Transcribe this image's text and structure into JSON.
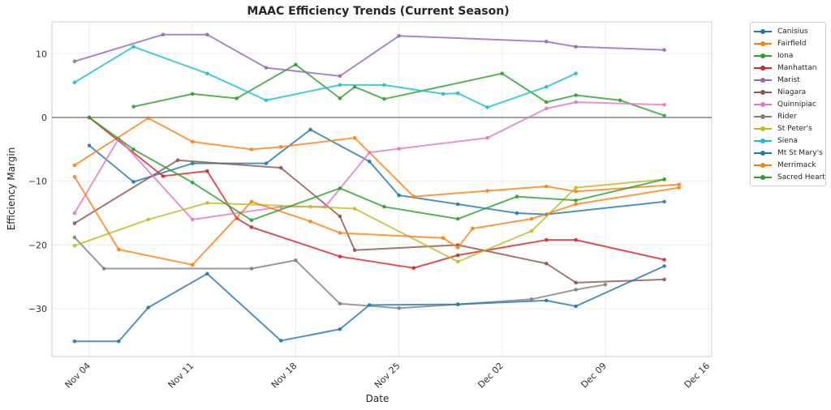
{
  "chart_data": {
    "type": "line",
    "title": "MAAC Efficiency Trends (Current Season)",
    "xlabel": "Date",
    "ylabel": "Efficiency Margin",
    "x_ticks": [
      "Nov 04",
      "Nov 11",
      "Nov 18",
      "Nov 25",
      "Dec 02",
      "Dec 09",
      "Dec 16"
    ],
    "y_ticks": [
      10,
      0,
      -10,
      -20,
      -30
    ],
    "xlim": [
      "Nov 03",
      "Dec 16"
    ],
    "ylim": [
      -37.5,
      15.5
    ],
    "grid": true,
    "zero_line": true,
    "legend_position": "outside-top-right",
    "series": [
      {
        "name": "Canisius",
        "color": "#1f77b4",
        "points": [
          [
            "Nov 04",
            -4.4
          ],
          [
            "Nov 07",
            -10.1
          ],
          [
            "Nov 11",
            -7.2
          ],
          [
            "Nov 16",
            -7.2
          ],
          [
            "Nov 19",
            -1.9
          ],
          [
            "Nov 23",
            -6.9
          ],
          [
            "Nov 25",
            -12.2
          ],
          [
            "Nov 29",
            -13.6
          ],
          [
            "Dec 03",
            -15.0
          ],
          [
            "Dec 05",
            -15.2
          ],
          [
            "Dec 13",
            -13.2
          ]
        ]
      },
      {
        "name": "Fairfield",
        "color": "#ff7f0e",
        "points": [
          [
            "Nov 03",
            -7.5
          ],
          [
            "Nov 08",
            -0.1
          ],
          [
            "Nov 11",
            -3.8
          ],
          [
            "Nov 15",
            -5.0
          ],
          [
            "Nov 17",
            -4.6
          ],
          [
            "Nov 22",
            -3.2
          ],
          [
            "Nov 26",
            -12.4
          ],
          [
            "Dec 01",
            -11.5
          ],
          [
            "Dec 05",
            -10.8
          ],
          [
            "Dec 07",
            -11.6
          ],
          [
            "Dec 14",
            -10.5
          ]
        ]
      },
      {
        "name": "Iona",
        "color": "#2ca02c",
        "points": [
          [
            "Nov 07",
            1.7
          ],
          [
            "Nov 11",
            3.7
          ],
          [
            "Nov 14",
            3.0
          ],
          [
            "Nov 18",
            8.3
          ],
          [
            "Nov 21",
            3.0
          ],
          [
            "Nov 22",
            4.8
          ],
          [
            "Nov 24",
            2.9
          ],
          [
            "Dec 02",
            6.9
          ],
          [
            "Dec 05",
            2.4
          ],
          [
            "Dec 07",
            3.5
          ],
          [
            "Dec 10",
            2.7
          ],
          [
            "Dec 13",
            0.3
          ]
        ]
      },
      {
        "name": "Manhattan",
        "color": "#d62728",
        "points": [
          [
            "Nov 04",
            0.0
          ],
          [
            "Nov 09",
            -9.2
          ],
          [
            "Nov 12",
            -8.4
          ],
          [
            "Nov 14",
            -15.8
          ],
          [
            "Nov 15",
            -17.2
          ],
          [
            "Nov 21",
            -21.8
          ],
          [
            "Nov 26",
            -23.6
          ],
          [
            "Nov 29",
            -21.6
          ],
          [
            "Dec 05",
            -19.2
          ],
          [
            "Dec 07",
            -19.2
          ],
          [
            "Dec 13",
            -22.3
          ]
        ]
      },
      {
        "name": "Marist",
        "color": "#9467bd",
        "points": [
          [
            "Nov 03",
            8.8
          ],
          [
            "Nov 09",
            13.0
          ],
          [
            "Nov 12",
            13.0
          ],
          [
            "Nov 16",
            7.8
          ],
          [
            "Nov 21",
            6.5
          ],
          [
            "Nov 25",
            12.8
          ],
          [
            "Dec 05",
            11.9
          ],
          [
            "Dec 07",
            11.1
          ],
          [
            "Dec 13",
            10.6
          ]
        ]
      },
      {
        "name": "Niagara",
        "color": "#8c564b",
        "points": [
          [
            "Nov 03",
            -16.6
          ],
          [
            "Nov 10",
            -6.7
          ],
          [
            "Nov 17",
            -7.9
          ],
          [
            "Nov 21",
            -15.5
          ],
          [
            "Nov 22",
            -20.8
          ],
          [
            "Nov 29",
            -20.0
          ],
          [
            "Dec 05",
            -22.9
          ],
          [
            "Dec 07",
            -25.9
          ],
          [
            "Dec 13",
            -25.4
          ]
        ]
      },
      {
        "name": "Quinnipiac",
        "color": "#e377c2",
        "points": [
          [
            "Nov 03",
            -15.0
          ],
          [
            "Nov 06",
            -3.3
          ],
          [
            "Nov 11",
            -16.0
          ],
          [
            "Nov 17",
            -14.0
          ],
          [
            "Nov 20",
            -14.0
          ],
          [
            "Nov 23",
            -5.5
          ],
          [
            "Nov 25",
            -4.9
          ],
          [
            "Dec 01",
            -3.2
          ],
          [
            "Dec 05",
            1.4
          ],
          [
            "Dec 07",
            2.4
          ],
          [
            "Dec 13",
            2.0
          ]
        ]
      },
      {
        "name": "Rider",
        "color": "#7f7f7f",
        "points": [
          [
            "Nov 03",
            -18.8
          ],
          [
            "Nov 05",
            -23.7
          ],
          [
            "Nov 15",
            -23.7
          ],
          [
            "Nov 18",
            -22.4
          ],
          [
            "Nov 21",
            -29.2
          ],
          [
            "Nov 25",
            -29.9
          ],
          [
            "Nov 29",
            -29.3
          ],
          [
            "Dec 04",
            -28.5
          ],
          [
            "Dec 07",
            -27.0
          ],
          [
            "Dec 09",
            -26.2
          ]
        ]
      },
      {
        "name": "St Peter's",
        "color": "#bcbd22",
        "points": [
          [
            "Nov 03",
            -20.1
          ],
          [
            "Nov 08",
            -16.0
          ],
          [
            "Nov 12",
            -13.4
          ],
          [
            "Nov 19",
            -14.0
          ],
          [
            "Nov 22",
            -14.3
          ],
          [
            "Nov 29",
            -22.6
          ],
          [
            "Dec 04",
            -17.8
          ],
          [
            "Dec 07",
            -11.0
          ],
          [
            "Dec 13",
            -9.7
          ]
        ]
      },
      {
        "name": "Siena",
        "color": "#17becf",
        "points": [
          [
            "Nov 03",
            5.5
          ],
          [
            "Nov 07",
            11.1
          ],
          [
            "Nov 12",
            6.9
          ],
          [
            "Nov 16",
            2.7
          ],
          [
            "Nov 21",
            5.1
          ],
          [
            "Nov 24",
            5.1
          ],
          [
            "Nov 28",
            3.7
          ],
          [
            "Nov 29",
            3.8
          ],
          [
            "Dec 01",
            1.6
          ],
          [
            "Dec 05",
            4.8
          ],
          [
            "Dec 07",
            6.9
          ]
        ]
      },
      {
        "name": "Mt St Mary's",
        "color": "#1f77b4",
        "points": [
          [
            "Nov 03",
            -35.1
          ],
          [
            "Nov 06",
            -35.1
          ],
          [
            "Nov 08",
            -29.8
          ],
          [
            "Nov 12",
            -24.5
          ],
          [
            "Nov 17",
            -35.0
          ],
          [
            "Nov 21",
            -33.2
          ],
          [
            "Nov 23",
            -29.4
          ],
          [
            "Nov 29",
            -29.3
          ],
          [
            "Dec 05",
            -28.7
          ],
          [
            "Dec 07",
            -29.6
          ],
          [
            "Dec 13",
            -23.3
          ]
        ]
      },
      {
        "name": "Merrimack",
        "color": "#ff7f0e",
        "points": [
          [
            "Nov 03",
            -9.3
          ],
          [
            "Nov 06",
            -20.7
          ],
          [
            "Nov 11",
            -23.1
          ],
          [
            "Nov 15",
            -13.2
          ],
          [
            "Nov 19",
            -16.3
          ],
          [
            "Nov 21",
            -18.1
          ],
          [
            "Nov 28",
            -18.9
          ],
          [
            "Nov 29",
            -20.4
          ],
          [
            "Nov 30",
            -17.4
          ],
          [
            "Dec 04",
            -15.9
          ],
          [
            "Dec 07",
            -13.6
          ],
          [
            "Dec 14",
            -11.0
          ]
        ]
      },
      {
        "name": "Sacred Heart",
        "color": "#2ca02c",
        "points": [
          [
            "Nov 04",
            0.0
          ],
          [
            "Nov 07",
            -5.0
          ],
          [
            "Nov 11",
            -10.2
          ],
          [
            "Nov 15",
            -16.1
          ],
          [
            "Nov 21",
            -11.1
          ],
          [
            "Nov 24",
            -14.0
          ],
          [
            "Nov 29",
            -15.9
          ],
          [
            "Dec 03",
            -12.4
          ],
          [
            "Dec 07",
            -13.0
          ],
          [
            "Dec 13",
            -9.7
          ]
        ]
      }
    ]
  }
}
